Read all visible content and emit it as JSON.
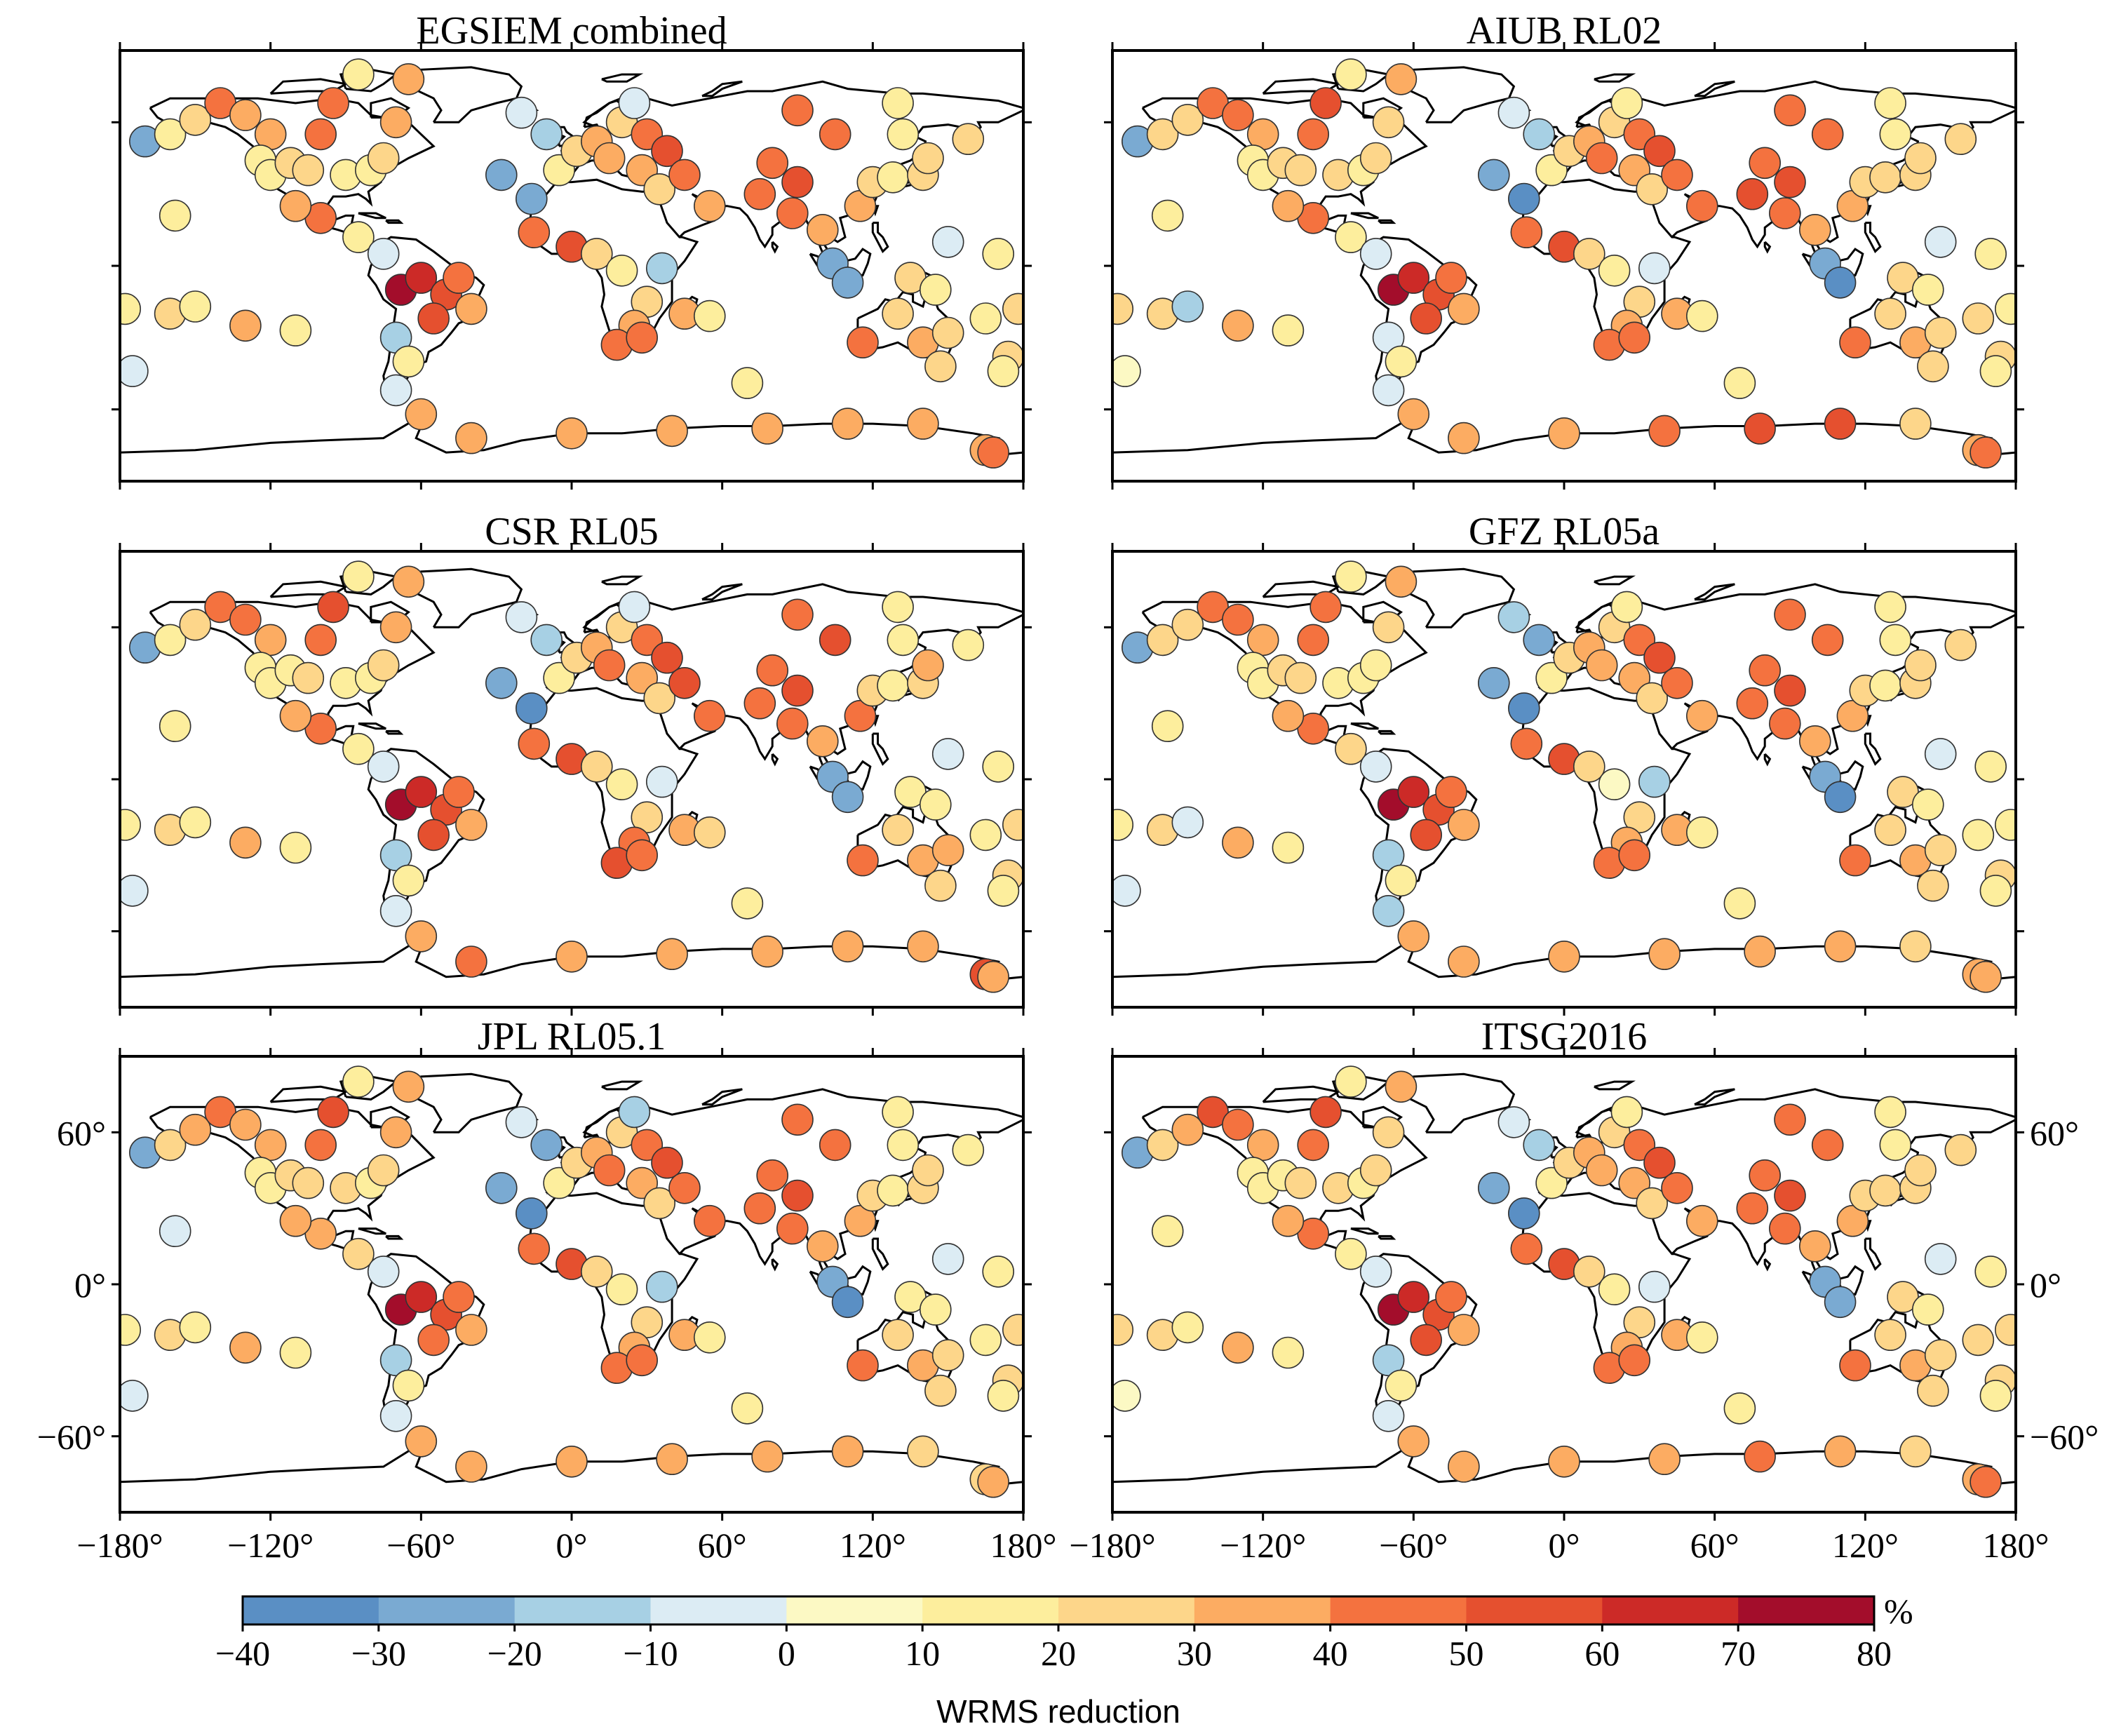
{
  "chart_data": {
    "type": "scatter",
    "subtype": "global station map, 6 panels",
    "panels": [
      {
        "title": "EGSIEM combined",
        "position": "top-left"
      },
      {
        "title": "AIUB RL02",
        "position": "top-right"
      },
      {
        "title": "CSR RL05",
        "position": "middle-left"
      },
      {
        "title": "GFZ RL05a",
        "position": "middle-right"
      },
      {
        "title": "JPL RL05.1",
        "position": "bottom-left"
      },
      {
        "title": "ITSG2016",
        "position": "bottom-right"
      }
    ],
    "xlim": [
      -180,
      180
    ],
    "ylim": [
      -90,
      90
    ],
    "x_ticks": [
      -180,
      -120,
      -60,
      0,
      60,
      120,
      180
    ],
    "x_tick_labels": [
      "−180°",
      "−120°",
      "−60°",
      "0°",
      "60°",
      "120°",
      "180°"
    ],
    "y_ticks": [
      60,
      0,
      -60
    ],
    "y_tick_labels": [
      "60°",
      "0°",
      "−60°"
    ],
    "colorbar": {
      "title": "WRMS reduction",
      "unit": "%",
      "ticks": [
        -40,
        -30,
        -20,
        -10,
        0,
        10,
        20,
        30,
        40,
        50,
        60,
        70,
        80
      ],
      "tick_labels": [
        "−40",
        "−30",
        "−20",
        "−10",
        "0",
        "10",
        "20",
        "30",
        "40",
        "50",
        "60",
        "70",
        "80"
      ],
      "colors": [
        "#5a8fc4",
        "#7aaad2",
        "#a7d0e4",
        "#dcecf4",
        "#fcf9c4",
        "#fdee9d",
        "#fdd68a",
        "#fcac62",
        "#f4723f",
        "#e5502f",
        "#cc2a27",
        "#a30d2b"
      ],
      "placement": "bottom"
    },
    "stations": [
      {
        "lon": -170,
        "lat": 52,
        "v": [
          -25,
          -25,
          -25,
          -24,
          -27,
          -25
        ]
      },
      {
        "lon": -160,
        "lat": 55,
        "v": [
          18,
          20,
          16,
          20,
          21,
          22
        ]
      },
      {
        "lon": -150,
        "lat": 61,
        "v": [
          28,
          25,
          22,
          26,
          32,
          30
        ]
      },
      {
        "lon": -140,
        "lat": 68,
        "v": [
          45,
          42,
          48,
          44,
          46,
          50
        ]
      },
      {
        "lon": -130,
        "lat": 63,
        "v": [
          38,
          40,
          42,
          41,
          39,
          44
        ]
      },
      {
        "lon": -120,
        "lat": 55,
        "v": [
          35,
          32,
          30,
          36,
          37,
          35
        ]
      },
      {
        "lon": -124,
        "lat": 44,
        "v": [
          15,
          12,
          10,
          18,
          14,
          16
        ]
      },
      {
        "lon": -120,
        "lat": 38,
        "v": [
          12,
          15,
          14,
          10,
          13,
          12
        ]
      },
      {
        "lon": -112,
        "lat": 43,
        "v": [
          22,
          20,
          18,
          23,
          21,
          19
        ]
      },
      {
        "lon": -105,
        "lat": 40,
        "v": [
          25,
          28,
          26,
          24,
          27,
          25
        ]
      },
      {
        "lon": -100,
        "lat": 55,
        "v": [
          42,
          45,
          46,
          40,
          44,
          47
        ]
      },
      {
        "lon": -95,
        "lat": 68,
        "v": [
          48,
          50,
          52,
          49,
          51,
          53
        ]
      },
      {
        "lon": -90,
        "lat": 38,
        "v": [
          18,
          20,
          17,
          19,
          22,
          20
        ]
      },
      {
        "lon": -80,
        "lat": 40,
        "v": [
          14,
          12,
          16,
          15,
          13,
          14
        ]
      },
      {
        "lon": -75,
        "lat": 45,
        "v": [
          20,
          22,
          24,
          18,
          21,
          23
        ]
      },
      {
        "lon": -70,
        "lat": 60,
        "v": [
          30,
          28,
          32,
          29,
          31,
          27
        ]
      },
      {
        "lon": -85,
        "lat": 80,
        "v": [
          16,
          14,
          18,
          15,
          17,
          13
        ]
      },
      {
        "lon": -65,
        "lat": 78,
        "v": [
          32,
          35,
          36,
          33,
          34,
          30
        ]
      },
      {
        "lon": -100,
        "lat": 20,
        "v": [
          42,
          40,
          44,
          41,
          38,
          43
        ]
      },
      {
        "lon": -110,
        "lat": 25,
        "v": [
          30,
          33,
          35,
          31,
          32,
          34
        ]
      },
      {
        "lon": -85,
        "lat": 12,
        "v": [
          18,
          16,
          15,
          20,
          22,
          19
        ]
      },
      {
        "lon": -75,
        "lat": 5,
        "v": [
          -8,
          -5,
          -6,
          -7,
          -4,
          -6
        ]
      },
      {
        "lon": -68,
        "lat": -10,
        "v": [
          78,
          75,
          78,
          72,
          76,
          74
        ]
      },
      {
        "lon": -60,
        "lat": -5,
        "v": [
          65,
          62,
          60,
          63,
          64,
          60
        ]
      },
      {
        "lon": -50,
        "lat": -12,
        "v": [
          58,
          55,
          57,
          56,
          59,
          54
        ]
      },
      {
        "lon": -55,
        "lat": -22,
        "v": [
          52,
          50,
          53,
          51,
          48,
          50
        ]
      },
      {
        "lon": -45,
        "lat": -5,
        "v": [
          45,
          48,
          46,
          47,
          44,
          45
        ]
      },
      {
        "lon": -40,
        "lat": -18,
        "v": [
          35,
          38,
          36,
          34,
          37,
          35
        ]
      },
      {
        "lon": -70,
        "lat": -30,
        "v": [
          -12,
          -10,
          -14,
          -18,
          -15,
          -11
        ]
      },
      {
        "lon": -65,
        "lat": -40,
        "v": [
          14,
          16,
          15,
          17,
          13,
          14
        ]
      },
      {
        "lon": -70,
        "lat": -52,
        "v": [
          -6,
          -4,
          -8,
          -12,
          -9,
          -5
        ]
      },
      {
        "lon": -60,
        "lat": -62,
        "v": [
          36,
          34,
          35,
          33,
          32,
          36
        ]
      },
      {
        "lon": -178,
        "lat": -18,
        "v": [
          18,
          20,
          16,
          19,
          17,
          21
        ]
      },
      {
        "lon": -160,
        "lat": -20,
        "v": [
          22,
          24,
          25,
          21,
          23,
          22
        ]
      },
      {
        "lon": -150,
        "lat": -17,
        "v": [
          16,
          -12,
          18,
          -8,
          14,
          15
        ]
      },
      {
        "lon": -130,
        "lat": -25,
        "v": [
          32,
          30,
          34,
          31,
          33,
          32
        ]
      },
      {
        "lon": -110,
        "lat": -27,
        "v": [
          12,
          14,
          11,
          13,
          10,
          12
        ]
      },
      {
        "lon": -175,
        "lat": -44,
        "v": [
          -5,
          6,
          -6,
          -8,
          -4,
          5
        ]
      },
      {
        "lon": -158,
        "lat": 21,
        "v": [
          14,
          16,
          12,
          15,
          -8,
          13
        ]
      },
      {
        "lon": -20,
        "lat": 64,
        "v": [
          -6,
          -8,
          -5,
          -15,
          -10,
          -7
        ]
      },
      {
        "lon": -10,
        "lat": 55,
        "v": [
          -18,
          -20,
          -16,
          -22,
          -24,
          -19
        ]
      },
      {
        "lon": -28,
        "lat": 38,
        "v": [
          -25,
          -22,
          -28,
          -26,
          -24,
          -23
        ]
      },
      {
        "lon": -16,
        "lat": 28,
        "v": [
          -30,
          -35,
          -32,
          -31,
          -33,
          -34
        ]
      },
      {
        "lon": -5,
        "lat": 40,
        "v": [
          15,
          18,
          12,
          16,
          14,
          17
        ]
      },
      {
        "lon": 2,
        "lat": 48,
        "v": [
          25,
          22,
          28,
          24,
          26,
          23
        ]
      },
      {
        "lon": 10,
        "lat": 52,
        "v": [
          30,
          32,
          35,
          31,
          34,
          33
        ]
      },
      {
        "lon": 15,
        "lat": 45,
        "v": [
          38,
          40,
          42,
          39,
          41,
          37
        ]
      },
      {
        "lon": 20,
        "lat": 60,
        "v": [
          22,
          25,
          24,
          23,
          21,
          26
        ]
      },
      {
        "lon": 25,
        "lat": 68,
        "v": [
          -8,
          12,
          -10,
          14,
          -12,
          10
        ]
      },
      {
        "lon": 30,
        "lat": 55,
        "v": [
          45,
          42,
          48,
          46,
          44,
          47
        ]
      },
      {
        "lon": 38,
        "lat": 48,
        "v": [
          52,
          55,
          58,
          50,
          56,
          54
        ]
      },
      {
        "lon": 28,
        "lat": 40,
        "v": [
          35,
          38,
          34,
          36,
          37,
          35
        ]
      },
      {
        "lon": 35,
        "lat": 32,
        "v": [
          22,
          20,
          24,
          21,
          23,
          22
        ]
      },
      {
        "lon": 45,
        "lat": 38,
        "v": [
          48,
          46,
          50,
          47,
          45,
          49
        ]
      },
      {
        "lon": 55,
        "lat": 25,
        "v": [
          38,
          40,
          42,
          39,
          41,
          37
        ]
      },
      {
        "lon": 0,
        "lat": 8,
        "v": [
          55,
          52,
          50,
          53,
          54,
          51
        ]
      },
      {
        "lon": -15,
        "lat": 14,
        "v": [
          45,
          48,
          46,
          47,
          44,
          45
        ]
      },
      {
        "lon": 10,
        "lat": 5,
        "v": [
          28,
          25,
          22,
          26,
          24,
          27
        ]
      },
      {
        "lon": 20,
        "lat": -2,
        "v": [
          12,
          10,
          14,
          8,
          11,
          13
        ]
      },
      {
        "lon": 36,
        "lat": -1,
        "v": [
          -12,
          -10,
          -8,
          -11,
          -14,
          -9
        ]
      },
      {
        "lon": 30,
        "lat": -15,
        "v": [
          25,
          22,
          28,
          24,
          26,
          23
        ]
      },
      {
        "lon": 25,
        "lat": -25,
        "v": [
          38,
          35,
          40,
          36,
          37,
          34
        ]
      },
      {
        "lon": 18,
        "lat": -33,
        "v": [
          48,
          46,
          50,
          45,
          47,
          44
        ]
      },
      {
        "lon": 28,
        "lat": -30,
        "v": [
          42,
          40,
          44,
          41,
          43,
          42
        ]
      },
      {
        "lon": 45,
        "lat": -20,
        "v": [
          32,
          30,
          34,
          31,
          33,
          32
        ]
      },
      {
        "lon": 55,
        "lat": -21,
        "v": [
          18,
          15,
          20,
          16,
          14,
          17
        ]
      },
      {
        "lon": 70,
        "lat": -49,
        "v": [
          12,
          14,
          10,
          13,
          11,
          12
        ]
      },
      {
        "lon": 80,
        "lat": 43,
        "v": [
          42,
          45,
          40,
          44,
          43,
          41
        ]
      },
      {
        "lon": 75,
        "lat": 30,
        "v": [
          48,
          50,
          46,
          49,
          47,
          48
        ]
      },
      {
        "lon": 90,
        "lat": 35,
        "v": [
          55,
          52,
          58,
          54,
          53,
          56
        ]
      },
      {
        "lon": 88,
        "lat": 22,
        "v": [
          45,
          48,
          44,
          46,
          47,
          45
        ]
      },
      {
        "lon": 100,
        "lat": 15,
        "v": [
          32,
          35,
          30,
          33,
          34,
          31
        ]
      },
      {
        "lon": 104,
        "lat": 1,
        "v": [
          -25,
          -28,
          -24,
          -26,
          -30,
          -27
        ]
      },
      {
        "lon": 110,
        "lat": -7,
        "v": [
          -30,
          -32,
          -28,
          -31,
          -33,
          -29
        ]
      },
      {
        "lon": 115,
        "lat": 25,
        "v": [
          38,
          36,
          40,
          37,
          39,
          38
        ]
      },
      {
        "lon": 120,
        "lat": 35,
        "v": [
          25,
          28,
          24,
          26,
          27,
          25
        ]
      },
      {
        "lon": 128,
        "lat": 37,
        "v": [
          18,
          20,
          16,
          19,
          17,
          21
        ]
      },
      {
        "lon": 140,
        "lat": 38,
        "v": [
          22,
          24,
          20,
          23,
          21,
          22
        ]
      },
      {
        "lon": 142,
        "lat": 45,
        "v": [
          28,
          26,
          30,
          27,
          29,
          28
        ]
      },
      {
        "lon": 132,
        "lat": 55,
        "v": [
          15,
          18,
          14,
          16,
          17,
          15
        ]
      },
      {
        "lon": 158,
        "lat": 53,
        "v": [
          20,
          22,
          18,
          21,
          19,
          20
        ]
      },
      {
        "lon": 105,
        "lat": 55,
        "v": [
          48,
          45,
          50,
          46,
          47,
          49
        ]
      },
      {
        "lon": 90,
        "lat": 65,
        "v": [
          42,
          44,
          40,
          43,
          41,
          42
        ]
      },
      {
        "lon": 130,
        "lat": 68,
        "v": [
          16,
          14,
          18,
          15,
          17,
          16
        ]
      },
      {
        "lon": 150,
        "lat": 10,
        "v": [
          -8,
          -6,
          -10,
          -7,
          -9,
          -5
        ]
      },
      {
        "lon": 135,
        "lat": -5,
        "v": [
          20,
          22,
          18,
          21,
          19,
          20
        ]
      },
      {
        "lon": 145,
        "lat": -10,
        "v": [
          14,
          16,
          12,
          15,
          13,
          14
        ]
      },
      {
        "lon": 130,
        "lat": -20,
        "v": [
          24,
          26,
          22,
          25,
          23,
          24
        ]
      },
      {
        "lon": 116,
        "lat": -32,
        "v": [
          42,
          40,
          44,
          41,
          43,
          42
        ]
      },
      {
        "lon": 140,
        "lat": -32,
        "v": [
          35,
          38,
          34,
          36,
          37,
          35
        ]
      },
      {
        "lon": 150,
        "lat": -28,
        "v": [
          28,
          26,
          30,
          27,
          29,
          28
        ]
      },
      {
        "lon": 147,
        "lat": -42,
        "v": [
          22,
          24,
          20,
          23,
          21,
          22
        ]
      },
      {
        "lon": 165,
        "lat": -22,
        "v": [
          18,
          20,
          16,
          19,
          17,
          21
        ]
      },
      {
        "lon": 174,
        "lat": -38,
        "v": [
          25,
          22,
          28,
          24,
          26,
          23
        ]
      },
      {
        "lon": 172,
        "lat": -44,
        "v": [
          15,
          18,
          14,
          16,
          17,
          15
        ]
      },
      {
        "lon": 178,
        "lat": -18,
        "v": [
          20,
          18,
          22,
          19,
          21,
          20
        ]
      },
      {
        "lon": 170,
        "lat": 5,
        "v": [
          16,
          14,
          18,
          15,
          17,
          16
        ]
      },
      {
        "lon": -40,
        "lat": -72,
        "v": [
          38,
          36,
          40,
          37,
          39,
          38
        ]
      },
      {
        "lon": 0,
        "lat": -70,
        "v": [
          35,
          38,
          34,
          36,
          37,
          35
        ]
      },
      {
        "lon": 40,
        "lat": -69,
        "v": [
          32,
          45,
          33,
          32,
          34,
          33
        ]
      },
      {
        "lon": 78,
        "lat": -68,
        "v": [
          36,
          50,
          35,
          34,
          38,
          48
        ]
      },
      {
        "lon": 110,
        "lat": -66,
        "v": [
          34,
          52,
          33,
          32,
          31,
          30
        ]
      },
      {
        "lon": 140,
        "lat": -66,
        "v": [
          30,
          28,
          31,
          29,
          22,
          27
        ]
      },
      {
        "lon": 165,
        "lat": -77,
        "v": [
          30,
          32,
          55,
          34,
          28,
          33
        ]
      },
      {
        "lon": 168,
        "lat": -78,
        "v": [
          40,
          42,
          30,
          38,
          36,
          41
        ]
      }
    ]
  }
}
